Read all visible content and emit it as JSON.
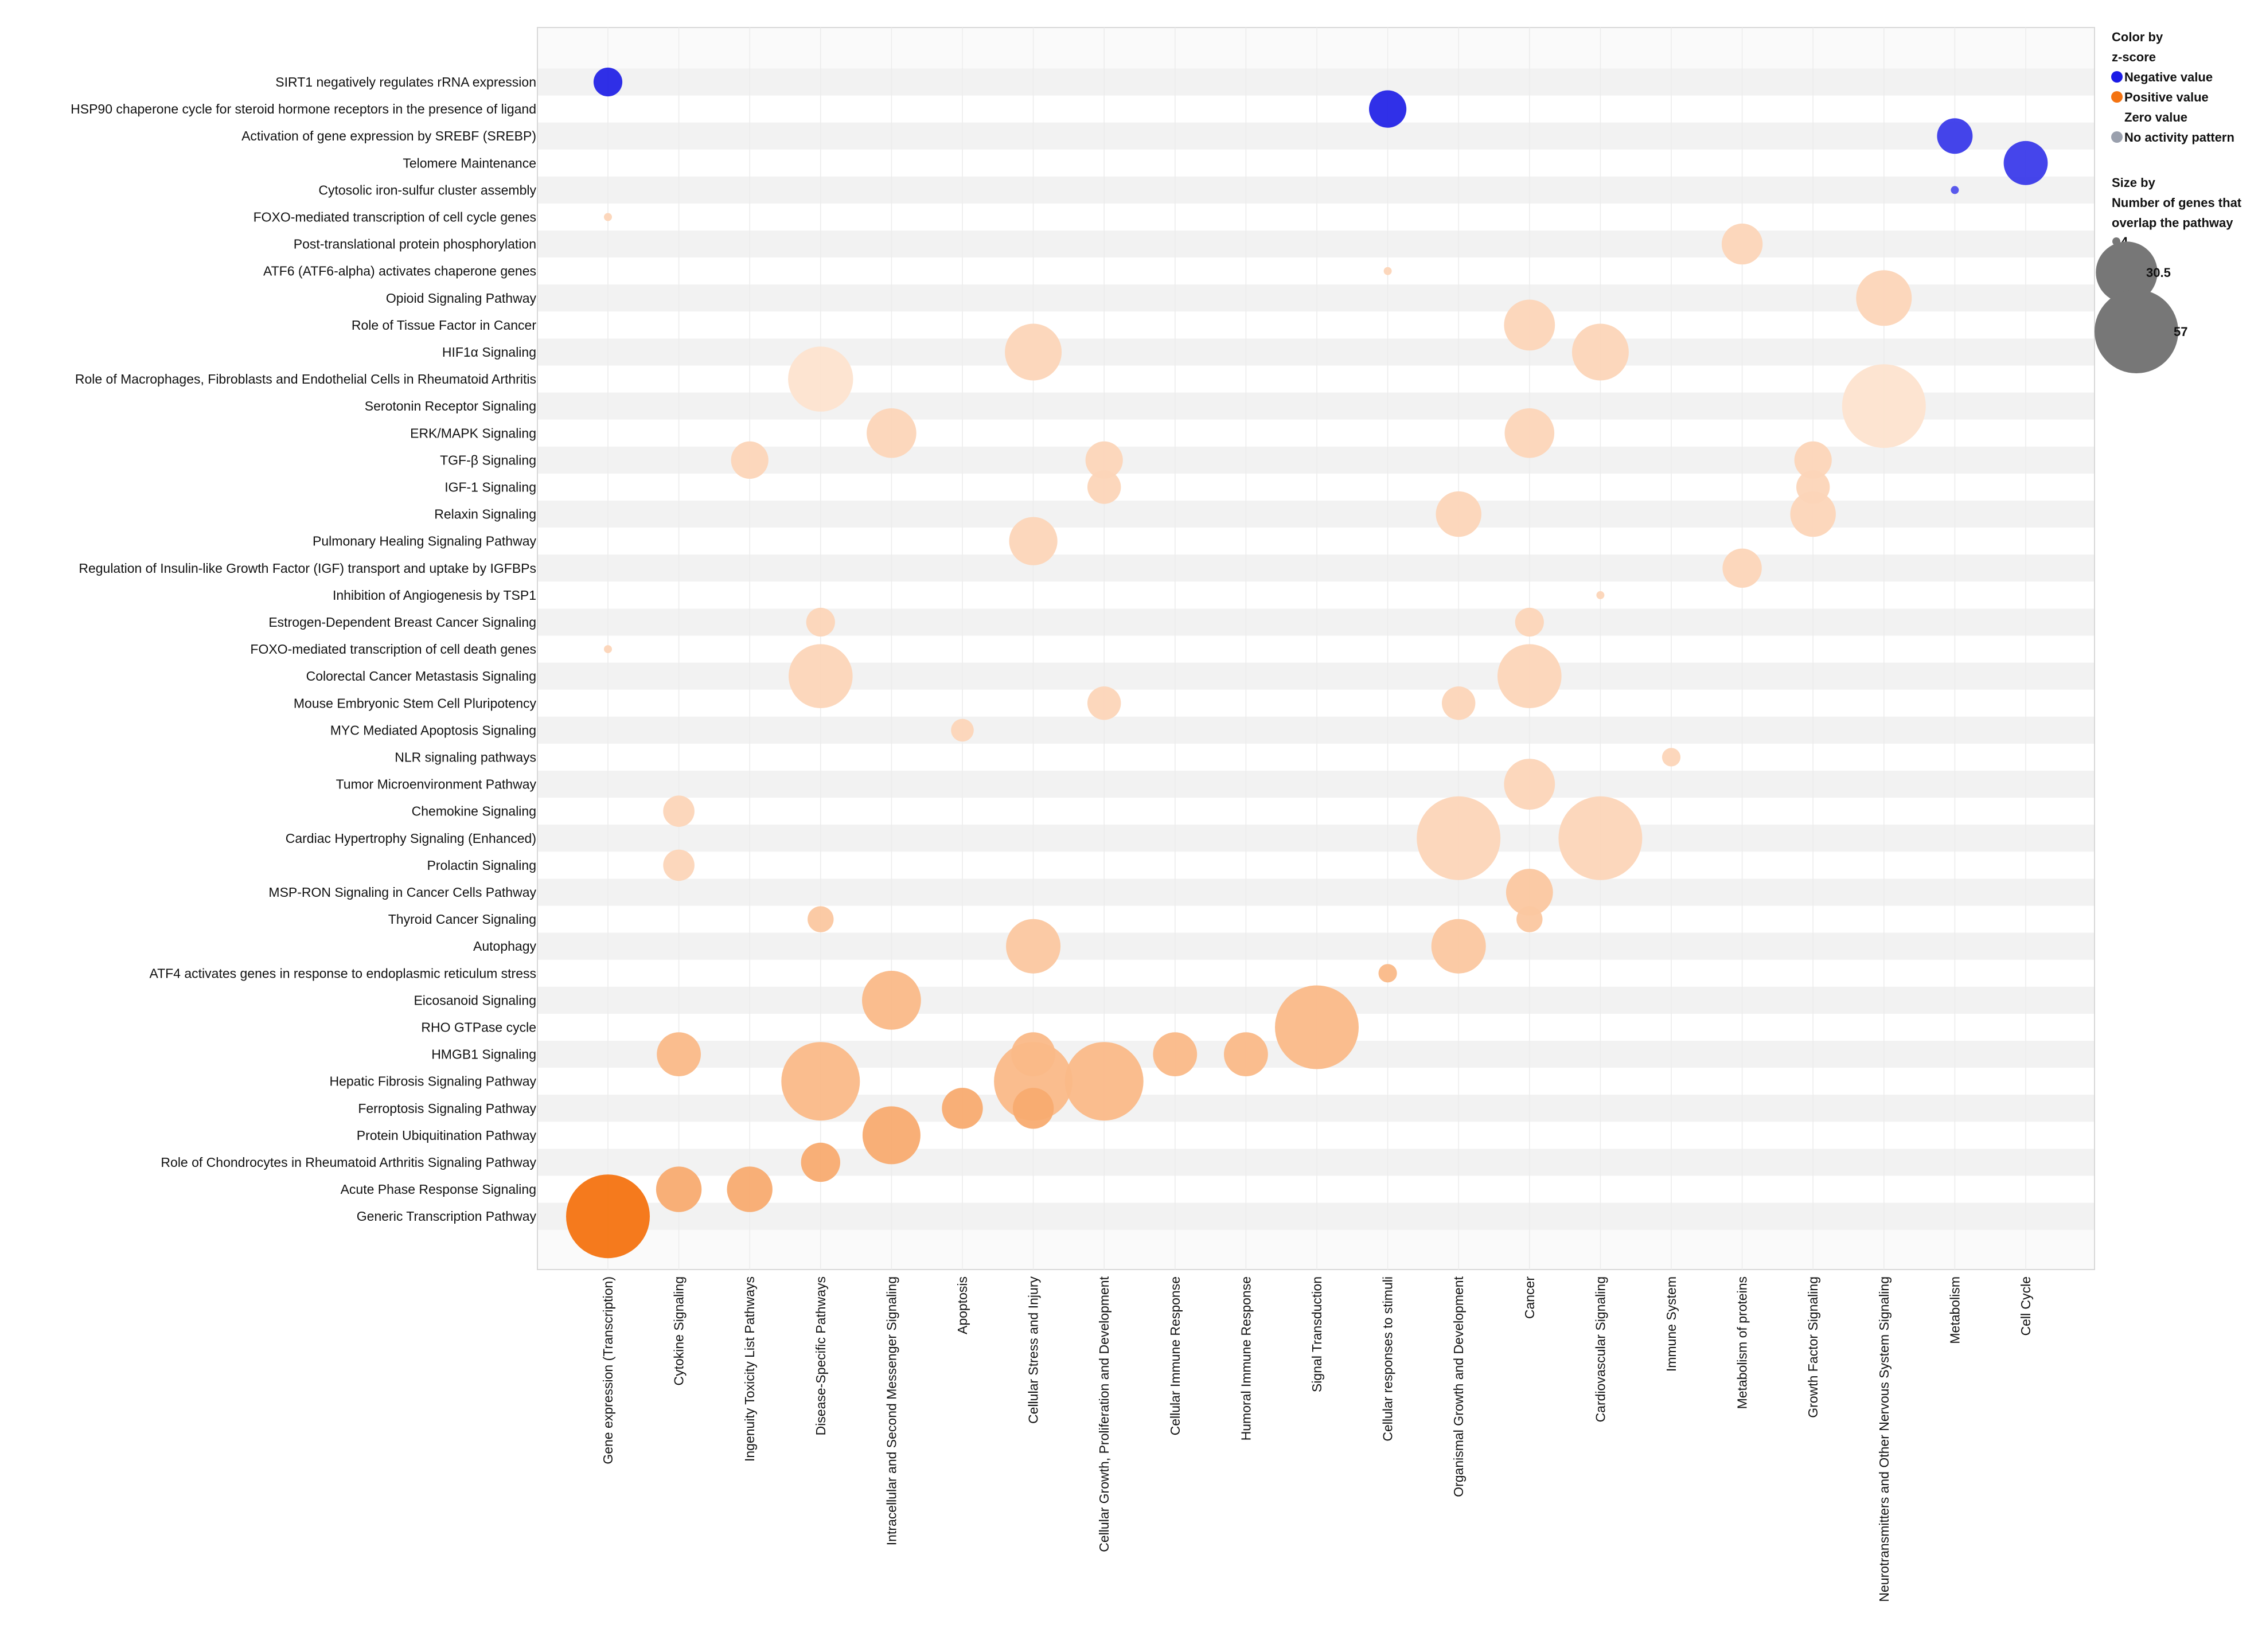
{
  "chart_data": {
    "type": "scatter",
    "subtype": "bubble-matrix",
    "rows": [
      "SIRT1 negatively regulates rRNA expression",
      "HSP90 chaperone cycle for steroid hormone receptors in the presence of ligand",
      "Activation of gene expression by SREBF (SREBP)",
      "Telomere Maintenance",
      "Cytosolic iron-sulfur cluster assembly",
      "FOXO-mediated transcription of cell cycle genes",
      "Post-translational protein phosphorylation",
      "ATF6 (ATF6-alpha) activates chaperone genes",
      "Opioid Signaling Pathway",
      "Role of Tissue Factor in Cancer",
      "HIF1α Signaling",
      "Role of Macrophages, Fibroblasts and Endothelial Cells in Rheumatoid Arthritis",
      "Serotonin Receptor Signaling",
      "ERK/MAPK Signaling",
      "TGF-β Signaling",
      "IGF-1 Signaling",
      "Relaxin Signaling",
      "Pulmonary Healing Signaling Pathway",
      "Regulation of Insulin-like Growth Factor (IGF) transport and uptake by IGFBPs",
      "Inhibition of Angiogenesis by TSP1",
      "Estrogen-Dependent Breast Cancer Signaling",
      "FOXO-mediated transcription of cell death genes",
      "Colorectal Cancer Metastasis Signaling",
      "Mouse Embryonic Stem Cell Pluripotency",
      "MYC Mediated Apoptosis Signaling",
      "NLR signaling pathways",
      "Tumor Microenvironment Pathway",
      "Chemokine Signaling",
      "Cardiac Hypertrophy Signaling (Enhanced)",
      "Prolactin Signaling",
      "MSP-RON Signaling in Cancer Cells Pathway",
      "Thyroid Cancer Signaling",
      "Autophagy",
      "ATF4 activates genes in response to endoplasmic reticulum stress",
      "Eicosanoid Signaling",
      "RHO GTPase cycle",
      "HMGB1 Signaling",
      "Hepatic Fibrosis Signaling Pathway",
      "Ferroptosis Signaling Pathway",
      "Protein Ubiquitination Pathway",
      "Role of Chondrocytes in Rheumatoid Arthritis Signaling Pathway",
      "Acute Phase Response Signaling",
      "Generic Transcription Pathway"
    ],
    "columns": [
      "Gene expression (Transcription)",
      "Cytokine Signaling",
      "Ingenuity Toxicity List Pathways",
      "Disease-Specific Pathways",
      "Intracellular and Second Messenger Signaling",
      "Apoptosis",
      "Cellular Stress and Injury",
      "Cellular Growth, Proliferation and Development",
      "Cellular Immune Response",
      "Humoral Immune Response",
      "Signal Transduction",
      "Cellular responses to stimuli",
      "Organismal Growth and Development",
      "Cancer",
      "Cardiovascular Signaling",
      "Immune System",
      "Metabolism of proteins",
      "Growth Factor Signaling",
      "Neurotransmitters and Other Nervous System Signaling",
      "Metabolism",
      "Cell Cycle"
    ],
    "points": [
      {
        "row": 0,
        "col": 0,
        "size": 8,
        "zscore": -1.0
      },
      {
        "row": 1,
        "col": 11,
        "size": 12,
        "zscore": -1.0
      },
      {
        "row": 2,
        "col": 19,
        "size": 11,
        "zscore": -0.9
      },
      {
        "row": 3,
        "col": 20,
        "size": 16,
        "zscore": -0.9
      },
      {
        "row": 4,
        "col": 19,
        "size": 4,
        "zscore": -0.8
      },
      {
        "row": 5,
        "col": 0,
        "size": 4,
        "zscore": 0.3
      },
      {
        "row": 6,
        "col": 16,
        "size": 14,
        "zscore": 0.3
      },
      {
        "row": 7,
        "col": 11,
        "size": 4,
        "zscore": 0.3
      },
      {
        "row": 8,
        "col": 18,
        "size": 25,
        "zscore": 0.3
      },
      {
        "row": 9,
        "col": 13,
        "size": 21,
        "zscore": 0.3
      },
      {
        "row": 10,
        "col": 6,
        "size": 26,
        "zscore": 0.3
      },
      {
        "row": 10,
        "col": 14,
        "size": 26,
        "zscore": 0.3
      },
      {
        "row": 11,
        "col": 3,
        "size": 34,
        "zscore": 0.2
      },
      {
        "row": 12,
        "col": 18,
        "size": 57,
        "zscore": 0.2
      },
      {
        "row": 13,
        "col": 4,
        "size": 20,
        "zscore": 0.3
      },
      {
        "row": 13,
        "col": 13,
        "size": 20,
        "zscore": 0.3
      },
      {
        "row": 14,
        "col": 2,
        "size": 12,
        "zscore": 0.3
      },
      {
        "row": 14,
        "col": 7,
        "size": 12,
        "zscore": 0.3
      },
      {
        "row": 14,
        "col": 17,
        "size": 12,
        "zscore": 0.3
      },
      {
        "row": 15,
        "col": 7,
        "size": 10,
        "zscore": 0.3
      },
      {
        "row": 15,
        "col": 17,
        "size": 10,
        "zscore": 0.3
      },
      {
        "row": 16,
        "col": 12,
        "size": 17,
        "zscore": 0.3
      },
      {
        "row": 16,
        "col": 17,
        "size": 17,
        "zscore": 0.3
      },
      {
        "row": 17,
        "col": 6,
        "size": 19,
        "zscore": 0.3
      },
      {
        "row": 18,
        "col": 16,
        "size": 13,
        "zscore": 0.3
      },
      {
        "row": 19,
        "col": 14,
        "size": 4,
        "zscore": 0.3
      },
      {
        "row": 20,
        "col": 3,
        "size": 8,
        "zscore": 0.3
      },
      {
        "row": 20,
        "col": 13,
        "size": 8,
        "zscore": 0.3
      },
      {
        "row": 21,
        "col": 0,
        "size": 4,
        "zscore": 0.3
      },
      {
        "row": 22,
        "col": 3,
        "size": 33,
        "zscore": 0.3
      },
      {
        "row": 22,
        "col": 13,
        "size": 33,
        "zscore": 0.3
      },
      {
        "row": 23,
        "col": 7,
        "size": 10,
        "zscore": 0.3
      },
      {
        "row": 23,
        "col": 12,
        "size": 10,
        "zscore": 0.3
      },
      {
        "row": 24,
        "col": 5,
        "size": 6,
        "zscore": 0.3
      },
      {
        "row": 25,
        "col": 15,
        "size": 5,
        "zscore": 0.3
      },
      {
        "row": 26,
        "col": 13,
        "size": 21,
        "zscore": 0.3
      },
      {
        "row": 27,
        "col": 1,
        "size": 9,
        "zscore": 0.3
      },
      {
        "row": 28,
        "col": 12,
        "size": 57,
        "zscore": 0.3
      },
      {
        "row": 28,
        "col": 14,
        "size": 57,
        "zscore": 0.3
      },
      {
        "row": 29,
        "col": 1,
        "size": 9,
        "zscore": 0.3
      },
      {
        "row": 30,
        "col": 13,
        "size": 18,
        "zscore": 0.4
      },
      {
        "row": 31,
        "col": 3,
        "size": 7,
        "zscore": 0.4
      },
      {
        "row": 31,
        "col": 13,
        "size": 7,
        "zscore": 0.4
      },
      {
        "row": 32,
        "col": 6,
        "size": 24,
        "zscore": 0.4
      },
      {
        "row": 32,
        "col": 12,
        "size": 24,
        "zscore": 0.4
      },
      {
        "row": 33,
        "col": 11,
        "size": 5,
        "zscore": 0.5
      },
      {
        "row": 34,
        "col": 4,
        "size": 28,
        "zscore": 0.5
      },
      {
        "row": 35,
        "col": 10,
        "size": 57,
        "zscore": 0.5
      },
      {
        "row": 36,
        "col": 1,
        "size": 16,
        "zscore": 0.5
      },
      {
        "row": 36,
        "col": 6,
        "size": 16,
        "zscore": 0.5
      },
      {
        "row": 36,
        "col": 8,
        "size": 16,
        "zscore": 0.5
      },
      {
        "row": 36,
        "col": 9,
        "size": 16,
        "zscore": 0.5
      },
      {
        "row": 37,
        "col": 3,
        "size": 50,
        "zscore": 0.5
      },
      {
        "row": 37,
        "col": 6,
        "size": 50,
        "zscore": 0.5
      },
      {
        "row": 37,
        "col": 7,
        "size": 50,
        "zscore": 0.5
      },
      {
        "row": 38,
        "col": 5,
        "size": 14,
        "zscore": 0.6
      },
      {
        "row": 38,
        "col": 6,
        "size": 14,
        "zscore": 0.6
      },
      {
        "row": 39,
        "col": 4,
        "size": 27,
        "zscore": 0.6
      },
      {
        "row": 40,
        "col": 3,
        "size": 13,
        "zscore": 0.6
      },
      {
        "row": 41,
        "col": 1,
        "size": 17,
        "zscore": 0.6
      },
      {
        "row": 41,
        "col": 2,
        "size": 17,
        "zscore": 0.6
      },
      {
        "row": 42,
        "col": 0,
        "size": 57,
        "zscore": 1.0
      }
    ],
    "size_range": [
      4,
      57
    ],
    "zscore_range": [
      -1,
      1
    ],
    "colors": {
      "negative": "#1a1ae6",
      "positive": "#f47311",
      "zero": "#ffffff",
      "no_activity": "#9aa0ad",
      "size_legend": "#777777",
      "band": "#f2f2f2"
    },
    "legend": {
      "color_title_line1": "Color by",
      "color_title_line2": "z-score",
      "negative_label": "Negative value",
      "positive_label": "Positive value",
      "zero_label": "Zero value",
      "no_activity_label": "No activity pattern",
      "size_title_line1": "Size by",
      "size_title_line2": "Number of genes that",
      "size_title_line3": " overlap the pathway",
      "size_values": [
        4,
        30.5,
        57
      ],
      "size_value_labels": [
        "4",
        "30.5",
        "57"
      ],
      "placement": "top-right"
    },
    "grid": true
  }
}
